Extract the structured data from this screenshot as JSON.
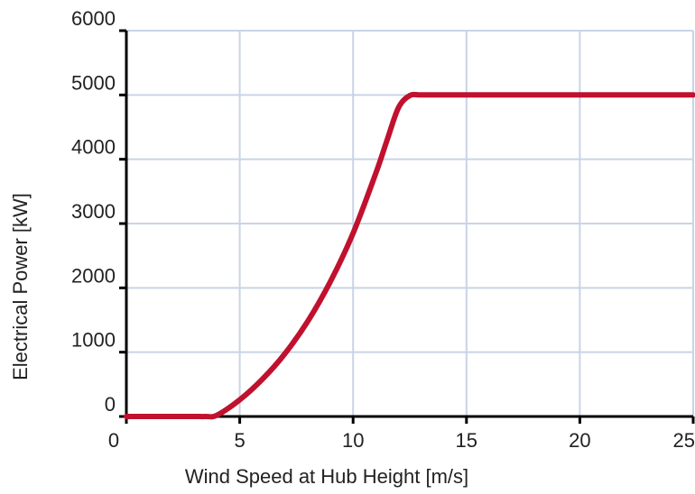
{
  "chart_data": {
    "type": "line",
    "title": "",
    "xlabel": "Wind Speed at Hub Height [m/s]",
    "ylabel": "Electrical Power [kW]",
    "xlim": [
      0,
      25
    ],
    "ylim": [
      0,
      6000
    ],
    "xticks": [
      0,
      5,
      10,
      15,
      20,
      25
    ],
    "yticks": [
      0,
      1000,
      2000,
      3000,
      4000,
      5000,
      6000
    ],
    "xtick_labels": [
      "0",
      "5",
      "10",
      "15",
      "20",
      "25"
    ],
    "ytick_labels": [
      "0",
      "1000",
      "2000",
      "3000",
      "4000",
      "5000",
      "6000"
    ],
    "grid": true,
    "grid_color": "#c8d4e6",
    "axis_color": "#000000",
    "series": [
      {
        "color": "#c0112e",
        "x": [
          0,
          1,
          2,
          3,
          3.5,
          4,
          5,
          6,
          7,
          8,
          9,
          10,
          11,
          11.5,
          12,
          12.5,
          13,
          14,
          15,
          16,
          17,
          18,
          19,
          20,
          21,
          22,
          23,
          24,
          25
        ],
        "y": [
          0,
          0,
          0,
          0,
          0,
          20,
          260,
          580,
          980,
          1480,
          2100,
          2850,
          3780,
          4300,
          4800,
          4990,
          5000,
          5000,
          5000,
          5000,
          5000,
          5000,
          5000,
          5000,
          5000,
          5000,
          5000,
          5000,
          5000
        ]
      }
    ]
  }
}
